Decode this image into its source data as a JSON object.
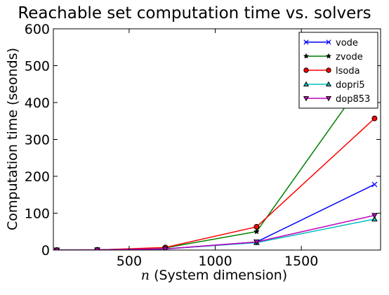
{
  "chart_data": {
    "type": "line",
    "title": "Reachable set computation time vs. solvers",
    "xlabel_var": "n",
    "xlabel_rest": " (System dimension)",
    "ylabel": "Computation time (seonds)",
    "xlim": [
      60,
      1960
    ],
    "ylim": [
      0,
      600
    ],
    "xticks": [
      500,
      1000,
      1500
    ],
    "yticks": [
      0,
      100,
      200,
      300,
      400,
      500,
      600
    ],
    "grid": false,
    "legend_position": "top-right",
    "x": [
      80,
      315,
      710,
      1240,
      1925
    ],
    "series": [
      {
        "name": "vode",
        "color": "#0000ff",
        "marker": "x",
        "values": [
          0,
          0.5,
          3,
          22,
          178
        ]
      },
      {
        "name": "zvode",
        "color": "#007f00",
        "marker": "star",
        "values": [
          0,
          0.5,
          6,
          50,
          500
        ]
      },
      {
        "name": "lsoda",
        "color": "#ff0000",
        "marker": "circle",
        "values": [
          0,
          0.5,
          7,
          63,
          357
        ]
      },
      {
        "name": "dopri5",
        "color": "#00bfbf",
        "marker": "triangle-up",
        "values": [
          0,
          0.5,
          3,
          20,
          84
        ]
      },
      {
        "name": "dop853",
        "color": "#bf00bf",
        "marker": "triangle-down",
        "values": [
          0,
          0.5,
          3,
          22,
          94
        ]
      }
    ]
  }
}
